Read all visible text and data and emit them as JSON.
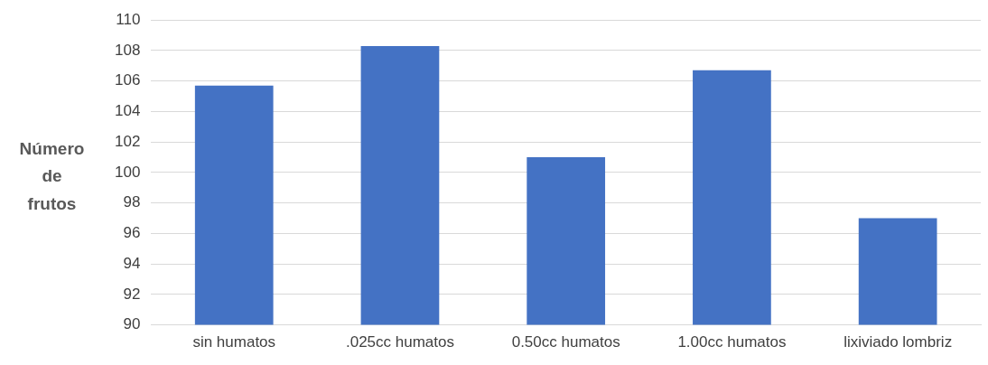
{
  "chart_data": {
    "type": "bar",
    "ylabel": "Número de frutos",
    "categories": [
      "sin humatos",
      ".025cc humatos",
      "0.50cc humatos",
      "1.00cc humatos",
      "lixiviado lombriz"
    ],
    "values": [
      105.7,
      108.3,
      101,
      106.7,
      97
    ],
    "color": "#4472c4",
    "ylim": [
      90,
      110
    ],
    "yticks": [
      90,
      92,
      94,
      96,
      98,
      100,
      102,
      104,
      106,
      108,
      110
    ],
    "grid": "y"
  }
}
